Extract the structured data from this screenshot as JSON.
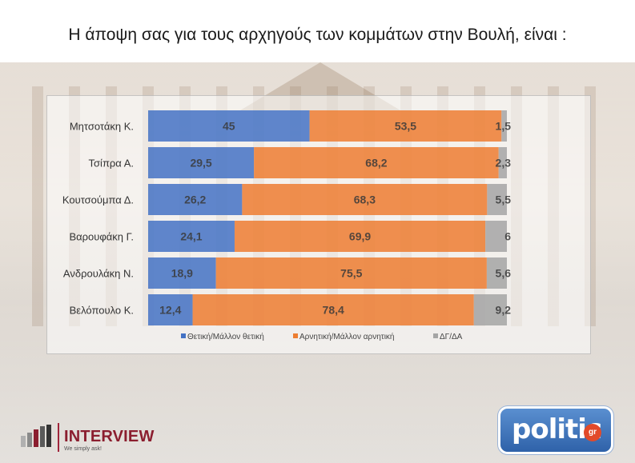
{
  "title": "Η άποψη σας για τους αρχηγούς των κομμάτων στην Βουλή,  είναι :",
  "colors": {
    "positive": "#4472C4",
    "negative": "#ED7D31",
    "dk": "#A5A5A5"
  },
  "chart_data": {
    "type": "bar",
    "orientation": "horizontal",
    "stacked": true,
    "categories": [
      "Μητσοτάκη Κ.",
      "Τσίπρα Α.",
      "Κουτσούμπα Δ.",
      "Βαρουφάκη Γ.",
      "Ανδρουλάκη Ν.",
      "Βελόπουλο Κ."
    ],
    "series": [
      {
        "name": "Θετική/Μάλλον θετική",
        "values": [
          "45",
          "29,5",
          "26,2",
          "24,1",
          "18,9",
          "12,4"
        ],
        "numeric": [
          45,
          29.5,
          26.2,
          24.1,
          18.9,
          12.4
        ]
      },
      {
        "name": "Αρνητική/Μάλλον αρνητική",
        "values": [
          "53,5",
          "68,2",
          "68,3",
          "69,9",
          "75,5",
          "78,4"
        ],
        "numeric": [
          53.5,
          68.2,
          68.3,
          69.9,
          75.5,
          78.4
        ]
      },
      {
        "name": "ΔΓ/ΔΑ",
        "values": [
          "1,5",
          "2,3",
          "5,5",
          "6",
          "5,6",
          "9,2"
        ],
        "numeric": [
          1.5,
          2.3,
          5.5,
          6,
          5.6,
          9.2
        ]
      }
    ],
    "xlim": [
      0,
      100
    ],
    "legend": "bottom",
    "grid": false
  },
  "logos": {
    "interview": {
      "name": "INTERVIEW",
      "tagline": "We simply ask!"
    },
    "politic": {
      "name": "politic",
      "suffix": "gr"
    }
  }
}
